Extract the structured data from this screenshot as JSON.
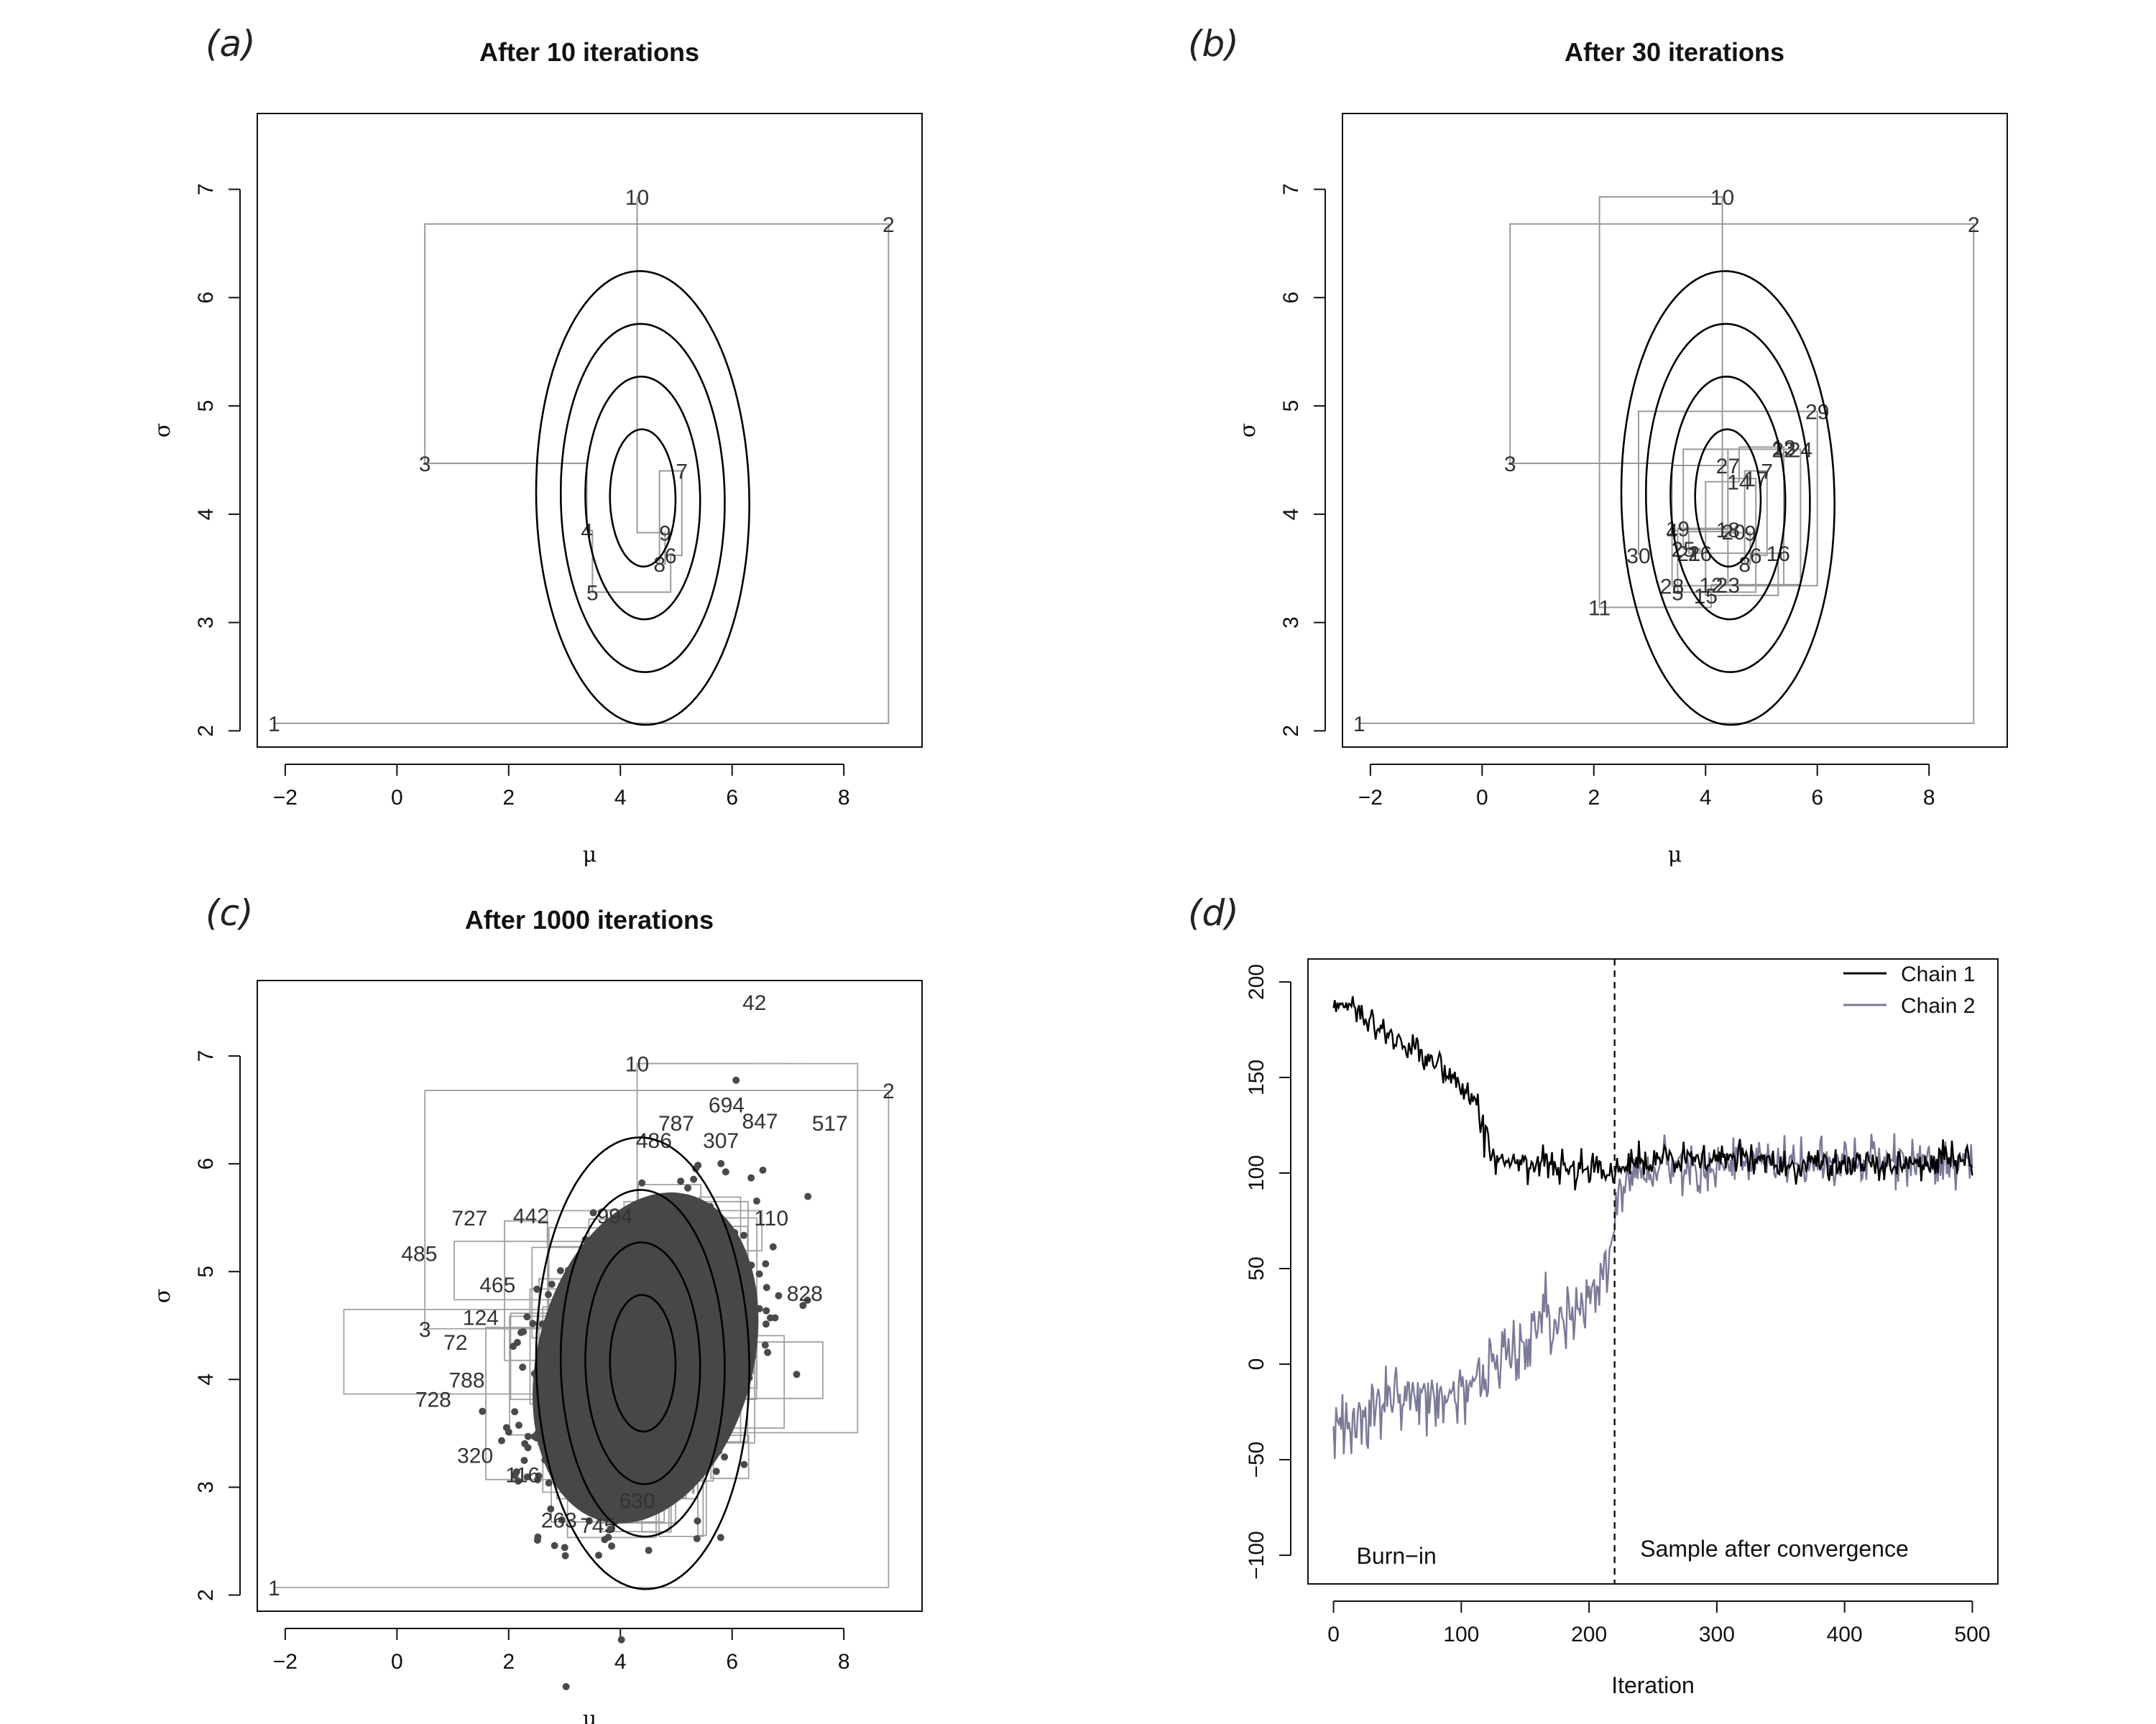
{
  "chart_data": [
    {
      "panel": "(a)",
      "type": "line",
      "title": "After 10 iterations",
      "xlabel": "μ",
      "ylabel": "σ",
      "xlim": [
        -2.5,
        9.4
      ],
      "ylim": [
        1.85,
        7.7
      ],
      "xticks": [
        -2,
        0,
        2,
        4,
        6,
        8
      ],
      "yticks": [
        2,
        3,
        4,
        5,
        6,
        7
      ],
      "contours": {
        "center": [
          4.4,
          4.15
        ],
        "semi_axes": [
          [
            0.6,
            0.65
          ],
          [
            1.05,
            1.15
          ],
          [
            1.5,
            1.65
          ],
          [
            1.95,
            2.15
          ]
        ]
      },
      "trace": {
        "labels": [
          "1",
          "2",
          "3",
          "4",
          "5",
          "6",
          "7",
          "8",
          "9",
          "10"
        ],
        "mu": [
          -2.2,
          8.8,
          0.5,
          3.4,
          3.5,
          4.9,
          5.1,
          4.7,
          4.8,
          4.3
        ],
        "sigma": [
          2.07,
          6.68,
          4.47,
          3.85,
          3.28,
          3.62,
          4.4,
          3.54,
          3.83,
          6.93
        ]
      }
    },
    {
      "panel": "(b)",
      "type": "line",
      "title": "After 30 iterations",
      "xlabel": "μ",
      "ylabel": "σ",
      "xlim": [
        -2.5,
        9.4
      ],
      "ylim": [
        1.85,
        7.7
      ],
      "xticks": [
        -2,
        0,
        2,
        4,
        6,
        8
      ],
      "yticks": [
        2,
        3,
        4,
        5,
        6,
        7
      ],
      "contours": {
        "center": [
          4.4,
          4.15
        ],
        "semi_axes": [
          [
            0.6,
            0.65
          ],
          [
            1.05,
            1.15
          ],
          [
            1.5,
            1.65
          ],
          [
            1.95,
            2.15
          ]
        ]
      },
      "trace": {
        "labels": [
          "1",
          "2",
          "3",
          "4",
          "5",
          "6",
          "7",
          "8",
          "9",
          "10",
          "11",
          "12",
          "13",
          "14",
          "15",
          "16",
          "17",
          "18",
          "19",
          "20",
          "21",
          "22",
          "23",
          "24",
          "25",
          "26",
          "27",
          "28",
          "29",
          "30"
        ],
        "mu": [
          -2.2,
          8.8,
          0.5,
          3.4,
          3.5,
          4.9,
          5.1,
          4.7,
          4.8,
          4.3,
          2.1,
          4.1,
          5.4,
          4.6,
          4.0,
          5.3,
          4.9,
          4.4,
          3.5,
          4.5,
          3.7,
          5.4,
          4.4,
          5.7,
          3.6,
          3.9,
          4.4,
          3.4,
          6.0,
          2.8
        ],
        "sigma": [
          2.07,
          6.68,
          4.47,
          3.85,
          3.28,
          3.62,
          4.4,
          3.54,
          3.83,
          6.93,
          3.14,
          3.35,
          4.62,
          4.3,
          3.25,
          3.64,
          4.33,
          3.86,
          3.87,
          3.84,
          3.64,
          4.6,
          3.35,
          4.6,
          3.68,
          3.64,
          4.45,
          3.34,
          4.95,
          3.62
        ]
      }
    },
    {
      "panel": "(c)",
      "type": "scatter",
      "title": "After 1000 iterations",
      "xlabel": "μ",
      "ylabel": "σ",
      "xlim": [
        -2.5,
        9.4
      ],
      "ylim": [
        1.85,
        7.7
      ],
      "xticks": [
        -2,
        0,
        2,
        4,
        6,
        8
      ],
      "yticks": [
        2,
        3,
        4,
        5,
        6,
        7
      ],
      "contours": {
        "center": [
          4.4,
          4.15
        ],
        "semi_axes": [
          [
            0.6,
            0.65
          ],
          [
            1.05,
            1.15
          ],
          [
            1.5,
            1.65
          ],
          [
            1.95,
            2.15
          ]
        ]
      },
      "cloud": {
        "n": 1000,
        "center": [
          4.5,
          4.2
        ],
        "sd": [
          0.95,
          0.65
        ]
      },
      "trace_labels": [
        {
          "label": "1",
          "mu": -2.2,
          "sigma": 2.07
        },
        {
          "label": "2",
          "mu": 8.8,
          "sigma": 6.68
        },
        {
          "label": "3",
          "mu": 0.5,
          "sigma": 4.47
        },
        {
          "label": "10",
          "mu": 4.3,
          "sigma": 6.93
        },
        {
          "label": "42",
          "mu": 6.4,
          "sigma": 7.5
        },
        {
          "label": "517",
          "mu": 7.75,
          "sigma": 6.38
        },
        {
          "label": "694",
          "mu": 5.9,
          "sigma": 6.55
        },
        {
          "label": "847",
          "mu": 6.5,
          "sigma": 6.4
        },
        {
          "label": "787",
          "mu": 5.0,
          "sigma": 6.38
        },
        {
          "label": "307",
          "mu": 5.8,
          "sigma": 6.22
        },
        {
          "label": "486",
          "mu": 4.6,
          "sigma": 6.22
        },
        {
          "label": "727",
          "mu": 1.3,
          "sigma": 5.5
        },
        {
          "label": "442",
          "mu": 2.4,
          "sigma": 5.52
        },
        {
          "label": "485",
          "mu": 0.4,
          "sigma": 5.17
        },
        {
          "label": "465",
          "mu": 1.8,
          "sigma": 4.88
        },
        {
          "label": "124",
          "mu": 1.5,
          "sigma": 4.58
        },
        {
          "label": "72",
          "mu": 1.05,
          "sigma": 4.35
        },
        {
          "label": "788",
          "mu": 1.25,
          "sigma": 4.0
        },
        {
          "label": "728",
          "mu": 0.65,
          "sigma": 3.82
        },
        {
          "label": "320",
          "mu": 1.4,
          "sigma": 3.3
        },
        {
          "label": "116",
          "mu": 2.25,
          "sigma": 3.12
        },
        {
          "label": "263",
          "mu": 2.9,
          "sigma": 2.7
        },
        {
          "label": "745",
          "mu": 3.6,
          "sigma": 2.65
        },
        {
          "label": "630",
          "mu": 4.3,
          "sigma": 2.88
        },
        {
          "label": "828",
          "mu": 7.3,
          "sigma": 4.8
        },
        {
          "label": "110",
          "mu": 6.7,
          "sigma": 5.5
        },
        {
          "label": "994",
          "mu": 3.9,
          "sigma": 5.52
        }
      ]
    },
    {
      "panel": "(d)",
      "type": "line",
      "title": "",
      "xlabel": "Iteration",
      "ylabel": "",
      "xlim": [
        -20,
        520
      ],
      "ylim": [
        -115,
        212
      ],
      "xticks": [
        0,
        100,
        200,
        300,
        400,
        500
      ],
      "yticks": [
        -100,
        -50,
        0,
        50,
        100,
        150,
        200
      ],
      "grid": false,
      "legend_position": "top-right",
      "convergence_line_x": 220,
      "annotations": [
        "Burn−in",
        "Sample after convergence"
      ],
      "series": [
        {
          "name": "Chain 1",
          "color": "#000000",
          "x": [
            0,
            10,
            20,
            30,
            40,
            50,
            60,
            70,
            80,
            90,
            100,
            110,
            115,
            120,
            125,
            130,
            140,
            150,
            160,
            180,
            200,
            220,
            240,
            260,
            280,
            300,
            320,
            340,
            360,
            380,
            400,
            420,
            440,
            460,
            480,
            500
          ],
          "y": [
            185,
            187,
            183,
            178,
            174,
            170,
            167,
            163,
            158,
            152,
            145,
            140,
            125,
            117,
            110,
            108,
            105,
            103,
            104,
            103,
            104,
            103,
            105,
            107,
            106,
            108,
            107,
            106,
            105,
            106,
            104,
            103,
            105,
            106,
            107,
            107
          ]
        },
        {
          "name": "Chain 2",
          "color": "#7a7a98",
          "x": [
            0,
            20,
            40,
            60,
            80,
            100,
            120,
            140,
            160,
            180,
            200,
            210,
            220,
            225,
            230,
            240,
            260,
            280,
            300,
            320,
            340,
            360,
            380,
            400,
            420,
            440,
            460,
            480,
            500
          ],
          "y": [
            -32,
            -25,
            -20,
            -18,
            -17,
            -13,
            -5,
            8,
            18,
            25,
            35,
            48,
            72,
            90,
            98,
            102,
            104,
            105,
            104,
            106,
            104,
            105,
            105,
            106,
            106,
            105,
            107,
            106,
            105
          ]
        }
      ]
    }
  ]
}
